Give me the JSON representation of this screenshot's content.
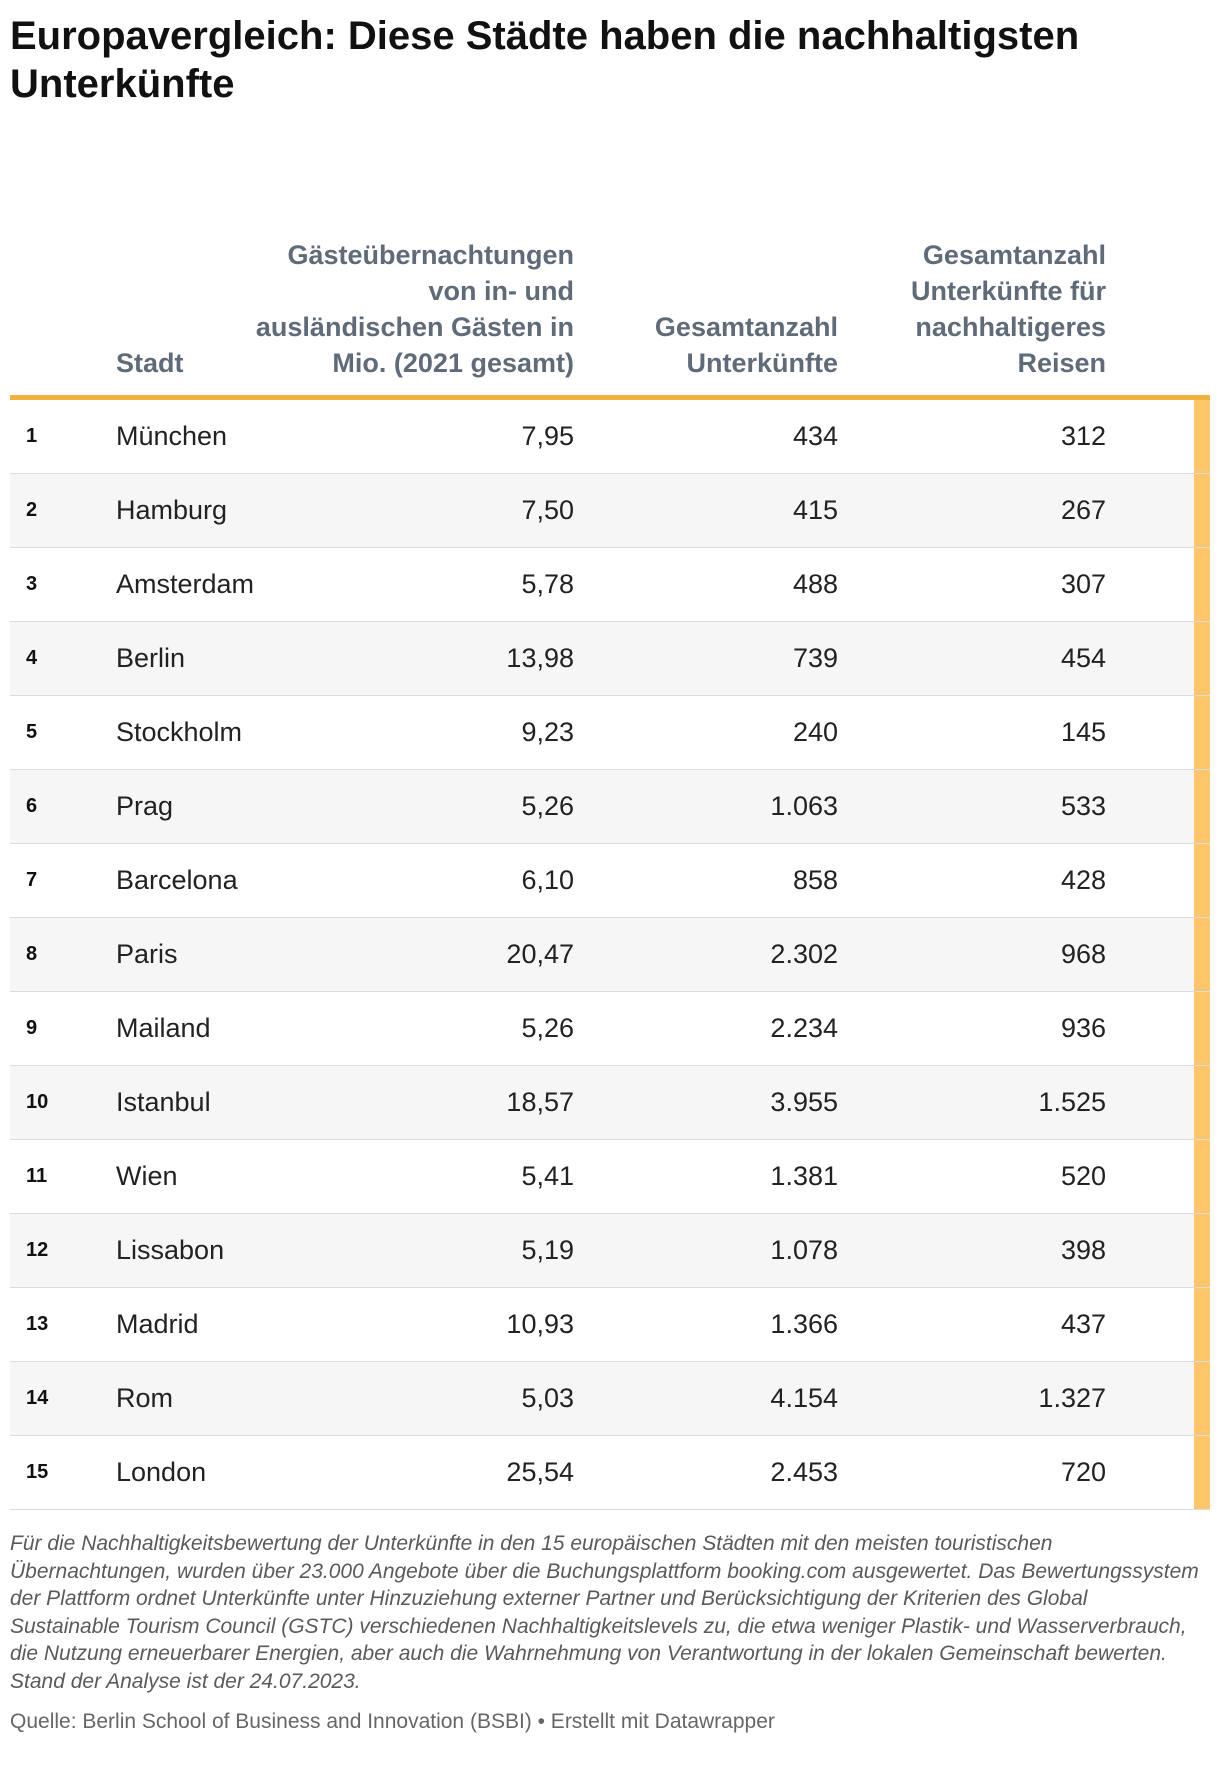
{
  "title": "Europavergleich: Diese Städte haben die nachhaltigsten Unterkünfte",
  "columns": {
    "rank": "",
    "city": "Stadt",
    "nights": "Gästeübernachtungen von in- und ausländischen Gästen in Mio. (2021 gesamt)",
    "total": "Gesamtanzahl Unterkünfte",
    "sustainable": "Gesamtanzahl Unterkünfte für nachhaltigeres Reisen"
  },
  "accent_color": "#f2b23b",
  "bar_color": "#ffc56b",
  "chart_data": {
    "type": "table",
    "title": "Europavergleich: Diese Städte haben die nachhaltigsten Unterkünfte",
    "columns": [
      "",
      "Stadt",
      "Gästeübernachtungen von in- und ausländischen Gästen in Mio. (2021 gesamt)",
      "Gesamtanzahl Unterkünfte",
      "Gesamtanzahl Unterkünfte für nachhaltigeres Reisen"
    ],
    "rows": [
      {
        "rank": "1",
        "city": "München",
        "nights": "7,95",
        "total": "434",
        "sustainable": "312"
      },
      {
        "rank": "2",
        "city": "Hamburg",
        "nights": "7,50",
        "total": "415",
        "sustainable": "267"
      },
      {
        "rank": "3",
        "city": "Amsterdam",
        "nights": "5,78",
        "total": "488",
        "sustainable": "307"
      },
      {
        "rank": "4",
        "city": "Berlin",
        "nights": "13,98",
        "total": "739",
        "sustainable": "454"
      },
      {
        "rank": "5",
        "city": "Stockholm",
        "nights": "9,23",
        "total": "240",
        "sustainable": "145"
      },
      {
        "rank": "6",
        "city": "Prag",
        "nights": "5,26",
        "total": "1.063",
        "sustainable": "533"
      },
      {
        "rank": "7",
        "city": "Barcelona",
        "nights": "6,10",
        "total": "858",
        "sustainable": "428"
      },
      {
        "rank": "8",
        "city": "Paris",
        "nights": "20,47",
        "total": "2.302",
        "sustainable": "968"
      },
      {
        "rank": "9",
        "city": "Mailand",
        "nights": "5,26",
        "total": "2.234",
        "sustainable": "936"
      },
      {
        "rank": "10",
        "city": "Istanbul",
        "nights": "18,57",
        "total": "3.955",
        "sustainable": "1.525"
      },
      {
        "rank": "11",
        "city": "Wien",
        "nights": "5,41",
        "total": "1.381",
        "sustainable": "520"
      },
      {
        "rank": "12",
        "city": "Lissabon",
        "nights": "5,19",
        "total": "1.078",
        "sustainable": "398"
      },
      {
        "rank": "13",
        "city": "Madrid",
        "nights": "10,93",
        "total": "1.366",
        "sustainable": "437"
      },
      {
        "rank": "14",
        "city": "Rom",
        "nights": "5,03",
        "total": "4.154",
        "sustainable": "1.327"
      },
      {
        "rank": "15",
        "city": "London",
        "nights": "25,54",
        "total": "2.453",
        "sustainable": "720"
      }
    ]
  },
  "note": "Für die Nachhaltigkeitsbewertung der Unterkünfte in den 15 europäischen Städten mit den meisten touristischen Übernachtungen, wurden über 23.000 Angebote über die Buchungsplattform booking.com ausgewertet. Das Bewertungssystem der Plattform ordnet Unterkünfte unter Hinzuziehung externer Partner und Berücksichtigung der Kriterien des Global Sustainable Tourism Council (GSTC) verschiedenen Nachhaltigkeitslevels zu, die etwa weniger Plastik- und Wasserverbrauch, die Nutzung erneuerbarer Energien, aber auch die Wahrnehmung von Verantwortung in der lokalen Gemeinschaft bewerten. Stand der Analyse ist der 24.07.2023.",
  "source": "Quelle: Berlin School of Business and Innovation (BSBI) • Erstellt mit Datawrapper"
}
